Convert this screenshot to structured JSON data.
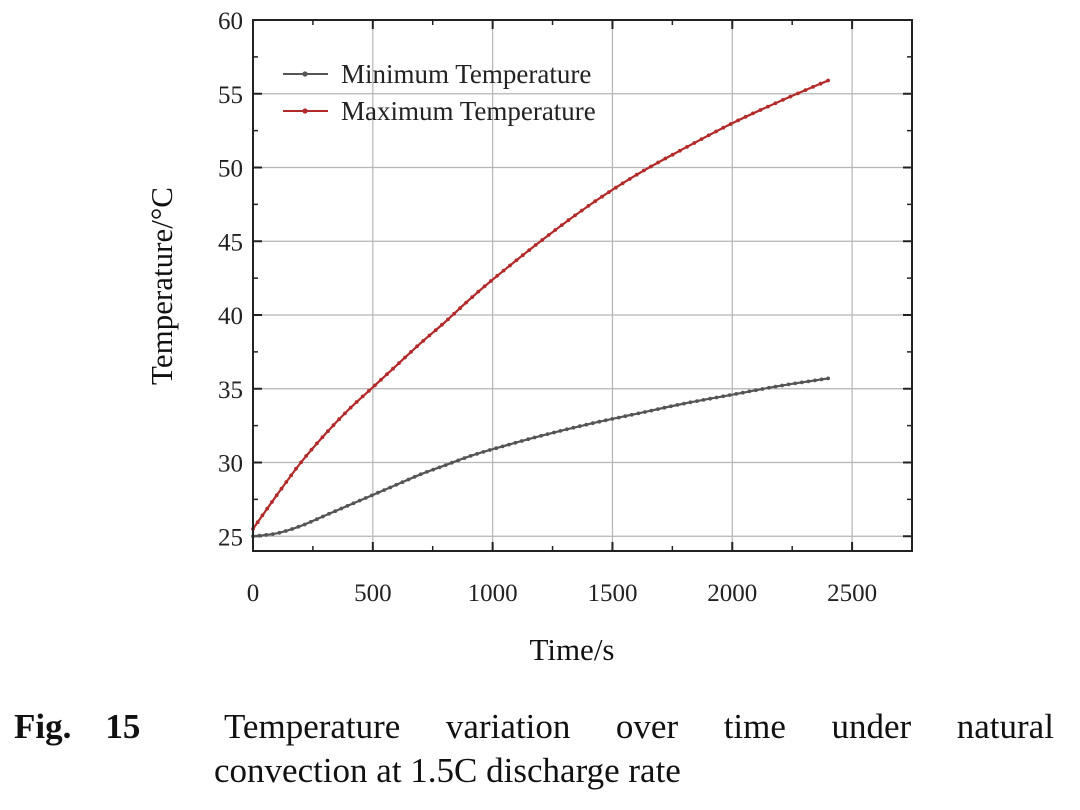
{
  "chart_data": {
    "type": "line",
    "title": "",
    "xlabel": "Time/s",
    "ylabel": "Temperature/°C",
    "xlim": [
      0,
      2750
    ],
    "ylim": [
      24,
      60
    ],
    "xticks": [
      0,
      500,
      1000,
      1500,
      2000,
      2500
    ],
    "yticks": [
      25,
      30,
      35,
      40,
      45,
      50,
      55,
      60
    ],
    "xtick_labels": [
      "0",
      "500",
      "1000",
      "1500",
      "2000",
      "2500"
    ],
    "ytick_labels": [
      "25",
      "30",
      "35",
      "40",
      "45",
      "50",
      "55",
      "60"
    ],
    "grid": true,
    "legend_position": "top-left",
    "series": [
      {
        "name": "Minimum Temperature",
        "color": "#555555",
        "x": [
          0,
          100,
          200,
          300,
          400,
          500,
          600,
          700,
          800,
          900,
          1000,
          1200,
          1400,
          1600,
          1800,
          2000,
          2200,
          2400
        ],
        "y": [
          25.0,
          25.2,
          25.7,
          26.4,
          27.1,
          27.8,
          28.5,
          29.2,
          29.8,
          30.4,
          30.9,
          31.8,
          32.6,
          33.3,
          34.0,
          34.6,
          35.2,
          35.7
        ]
      },
      {
        "name": "Maximum Temperature",
        "color": "#b22a2a",
        "x": [
          0,
          100,
          200,
          300,
          400,
          500,
          600,
          700,
          800,
          900,
          1000,
          1200,
          1400,
          1600,
          1800,
          2000,
          2200,
          2400
        ],
        "y": [
          25.5,
          27.8,
          30.0,
          31.9,
          33.6,
          35.1,
          36.6,
          38.1,
          39.5,
          41.0,
          42.4,
          45.0,
          47.4,
          49.5,
          51.3,
          53.0,
          54.5,
          55.9
        ]
      }
    ]
  },
  "caption": {
    "label_fig": "Fig.",
    "label_num": "15",
    "line1_words": [
      "Temperature",
      "variation",
      "over",
      "time",
      "under",
      "natural"
    ],
    "line2": "convection at 1.5C discharge rate"
  }
}
